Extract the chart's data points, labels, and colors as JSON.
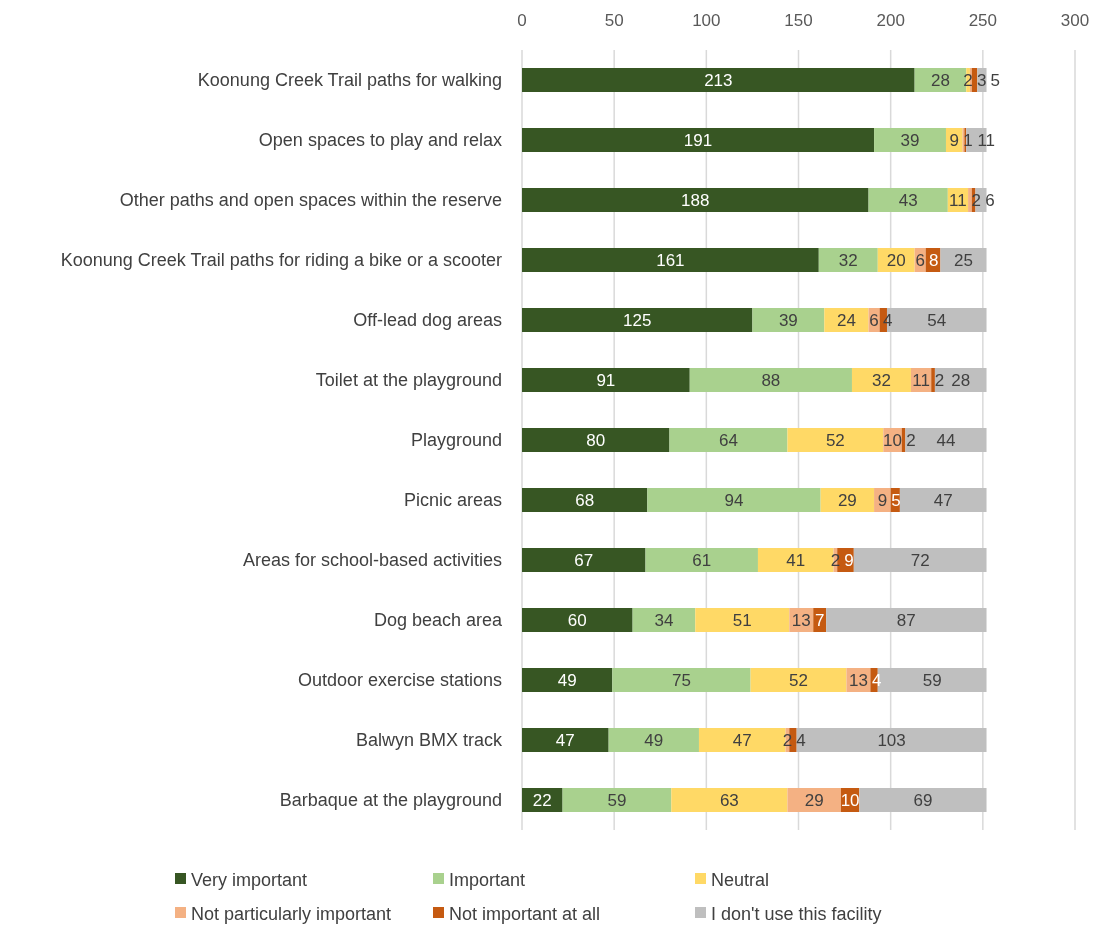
{
  "chart_data": {
    "type": "bar",
    "orientation": "horizontal",
    "stacked": true,
    "categories": [
      "Koonung Creek Trail paths for walking",
      "Open spaces to play and relax",
      "Other paths and open spaces within the reserve",
      "Koonung Creek Trail paths for riding a bike or a scooter",
      "Off-lead dog areas",
      "Toilet at the playground",
      "Playground",
      "Picnic areas",
      "Areas for school-based activities",
      "Dog beach area",
      "Outdoor exercise stations",
      "Balwyn BMX track",
      "Barbaque at the playground"
    ],
    "series": [
      {
        "name": "Very important",
        "color": "#375623",
        "values": [
          213,
          191,
          188,
          161,
          125,
          91,
          80,
          68,
          67,
          60,
          49,
          47,
          22
        ],
        "value_labels": [
          "213",
          "191",
          "188",
          "161",
          "125",
          "91",
          "80",
          "68",
          "67",
          "60",
          "49",
          "47",
          "22"
        ]
      },
      {
        "name": "Important",
        "color": "#a9d18e",
        "values": [
          28,
          39,
          43,
          32,
          39,
          88,
          64,
          94,
          61,
          34,
          75,
          49,
          59
        ],
        "value_labels": [
          "28",
          "39",
          "43",
          "32",
          "39",
          "88",
          "64",
          "94",
          "61",
          "34",
          "75",
          "49",
          "59"
        ]
      },
      {
        "name": "Neutral",
        "color": "#ffd966",
        "values": [
          2,
          9,
          11,
          20,
          24,
          32,
          52,
          29,
          41,
          51,
          52,
          47,
          63
        ],
        "value_labels": [
          "2",
          "9",
          "11",
          "20",
          "24",
          "32",
          "52",
          "29",
          "41",
          "51",
          "52",
          "47",
          "63"
        ]
      },
      {
        "name": "Not particularly important",
        "color": "#f4b183",
        "values": [
          1,
          1,
          2,
          6,
          6,
          11,
          10,
          9,
          2,
          13,
          13,
          2,
          29
        ],
        "value_labels": [
          null,
          null,
          null,
          "6",
          "6",
          "11",
          "10",
          "9",
          "2",
          "13",
          "13",
          "2",
          "29"
        ]
      },
      {
        "name": "Not important at all",
        "color": "#c55a11",
        "values": [
          3,
          1,
          2,
          8,
          4,
          2,
          2,
          5,
          9,
          7,
          4,
          4,
          10
        ],
        "value_labels": [
          "3",
          "1",
          "2",
          "8",
          "4",
          "2",
          "2",
          "5",
          "9",
          "7",
          "4",
          "4",
          "10"
        ]
      },
      {
        "name": "I don't use this facility",
        "color": "#bfbfbf",
        "values": [
          5,
          11,
          6,
          25,
          54,
          28,
          44,
          47,
          72,
          87,
          59,
          103,
          69
        ],
        "value_labels": [
          "5",
          "11",
          "6",
          "25",
          "54",
          "28",
          "44",
          "47",
          "72",
          "87",
          "59",
          "103",
          "69"
        ]
      }
    ],
    "xlim": [
      0,
      300
    ],
    "xticks": [
      0,
      50,
      100,
      150,
      200,
      250,
      300
    ],
    "grid": "x",
    "legend": "bottom"
  }
}
